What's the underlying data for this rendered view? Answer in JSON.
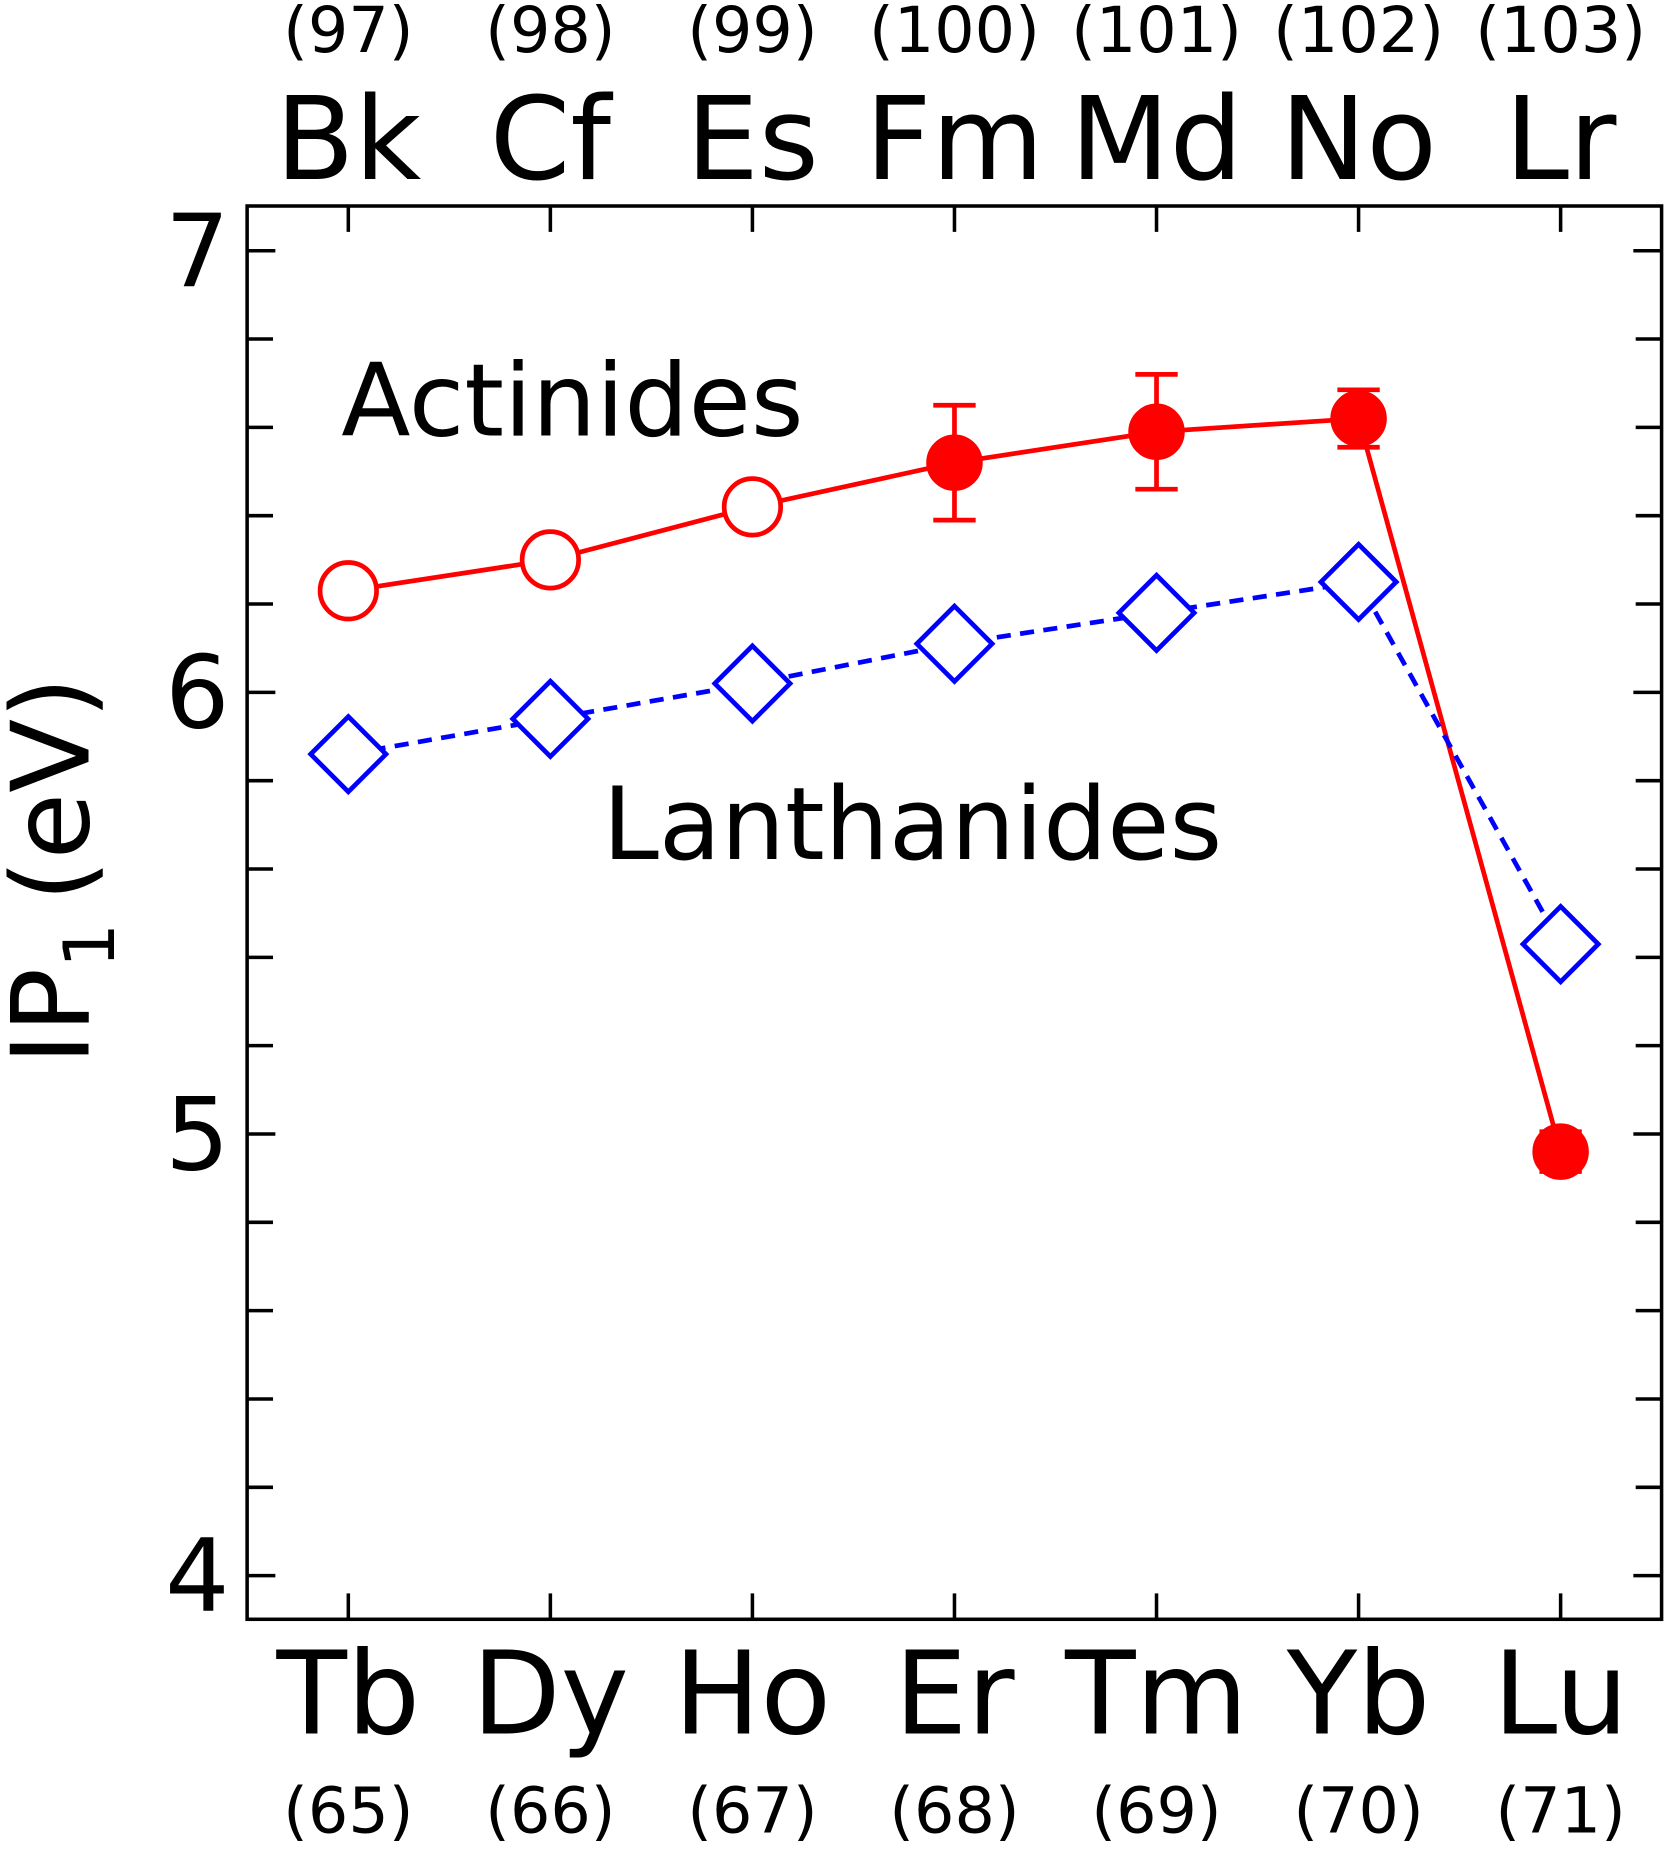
{
  "chart_data": {
    "type": "line",
    "ylabel": "IP",
    "ylabel_subscript": "1",
    "ylabel_unit": "(eV)",
    "ylim": [
      3.9,
      7.1
    ],
    "yticks": [
      "4",
      "5",
      "6",
      "7"
    ],
    "bottom_axis": {
      "categories": [
        "Tb",
        "Dy",
        "Ho",
        "Er",
        "Tm",
        "Yb",
        "Lu"
      ],
      "numbers": [
        "(65)",
        "(66)",
        "(67)",
        "(68)",
        "(69)",
        "(70)",
        "(71)"
      ]
    },
    "top_axis": {
      "categories": [
        "Bk",
        "Cf",
        "Es",
        "Fm",
        "Md",
        "No",
        "Lr"
      ],
      "numbers": [
        "(97)",
        "(98)",
        "(99)",
        "(100)",
        "(101)",
        "(102)",
        "(103)"
      ]
    },
    "series": [
      {
        "name": "Actinides",
        "color": "#ff0000",
        "marker": "circle",
        "line": "solid",
        "values": [
          6.23,
          6.3,
          6.42,
          6.52,
          6.59,
          6.62,
          4.96
        ],
        "filled": [
          false,
          false,
          false,
          true,
          true,
          true,
          true
        ],
        "errors": [
          0,
          0,
          0,
          0.13,
          0.13,
          0.065,
          0.045
        ]
      },
      {
        "name": "Lanthanides",
        "color": "#0000ff",
        "marker": "diamond",
        "line": "dotted",
        "values": [
          5.86,
          5.94,
          6.02,
          6.11,
          6.18,
          6.25,
          5.43
        ]
      }
    ],
    "grid": false
  }
}
